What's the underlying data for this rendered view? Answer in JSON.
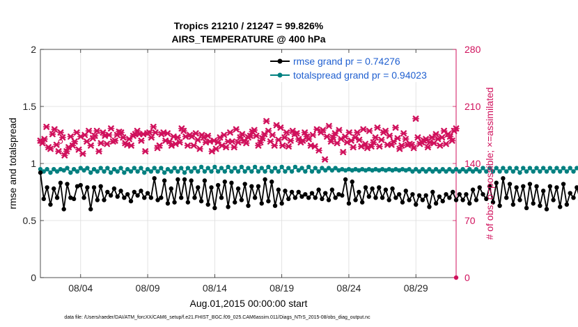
{
  "chart_data": {
    "type": "line",
    "title": "Tropics 21210 / 21247 = 99.826%",
    "subtitle": "AIRS_TEMPERATURE @ 400 hPa",
    "xlabel": "Aug.01,2015 00:00:00 start",
    "ylabel": "rmse and totalspread",
    "y2label": "# of obs: o=possible; ×=assimilated",
    "footnote": "data file: /Users/raeder/DAI/ATM_forcXX/CAM6_setup/f.e21.FHIST_BGC.f09_025.CAM6assim.011/Diags_NTrS_2015-08/obs_diag_output.nc",
    "xlim": [
      1,
      32
    ],
    "ylim": [
      0,
      2
    ],
    "y2lim": [
      0,
      280
    ],
    "x_ticks": [
      {
        "x": 4,
        "label": "08/04"
      },
      {
        "x": 9,
        "label": "08/09"
      },
      {
        "x": 14,
        "label": "08/14"
      },
      {
        "x": 19,
        "label": "08/19"
      },
      {
        "x": 24,
        "label": "08/24"
      },
      {
        "x": 29,
        "label": "08/29"
      }
    ],
    "y_ticks": [
      "0",
      "0.5",
      "1",
      "1.5",
      "2"
    ],
    "y2_ticks": [
      "0",
      "70",
      "140",
      "210",
      "280"
    ],
    "grid": true,
    "legend_position": "top-right",
    "colors": {
      "rmse": "#000000",
      "totalspread": "#008080",
      "obs": "#d0115c"
    },
    "x_start": 1.0,
    "x_step": 0.25,
    "series": [
      {
        "name": "rmse grand pr = 0.74276",
        "axis": "left",
        "values": [
          0.92,
          0.69,
          0.79,
          0.64,
          0.78,
          0.7,
          0.83,
          0.6,
          0.82,
          0.7,
          0.69,
          0.8,
          0.81,
          0.7,
          0.79,
          0.6,
          0.79,
          0.68,
          0.8,
          0.68,
          0.75,
          0.72,
          0.78,
          0.71,
          0.76,
          0.7,
          0.73,
          0.67,
          0.75,
          0.72,
          0.76,
          0.7,
          0.74,
          0.7,
          0.87,
          0.68,
          0.7,
          0.85,
          0.65,
          0.78,
          0.66,
          0.86,
          0.7,
          0.86,
          0.66,
          0.85,
          0.7,
          0.79,
          0.67,
          0.85,
          0.64,
          0.79,
          0.61,
          0.81,
          0.7,
          0.84,
          0.62,
          0.83,
          0.66,
          0.78,
          0.68,
          0.82,
          0.63,
          0.8,
          0.7,
          0.8,
          0.65,
          0.86,
          0.67,
          0.84,
          0.63,
          0.77,
          0.65,
          0.76,
          0.69,
          0.75,
          0.7,
          0.75,
          0.71,
          0.73,
          0.7,
          0.74,
          0.7,
          0.77,
          0.69,
          0.74,
          0.68,
          0.77,
          0.7,
          0.73,
          0.72,
          0.86,
          0.65,
          0.84,
          0.68,
          0.75,
          0.66,
          0.79,
          0.71,
          0.78,
          0.7,
          0.79,
          0.7,
          0.77,
          0.68,
          0.78,
          0.7,
          0.73,
          0.66,
          0.76,
          0.68,
          0.73,
          0.64,
          0.72,
          0.68,
          0.72,
          0.62,
          0.75,
          0.65,
          0.71,
          0.67,
          0.73,
          0.7,
          0.75,
          0.68,
          0.73,
          0.68,
          0.73,
          0.65,
          0.77,
          0.68,
          0.79,
          0.73,
          0.69,
          0.8,
          0.66,
          0.83,
          0.63,
          0.87,
          0.7,
          0.82,
          0.64,
          0.79,
          0.68,
          0.8,
          0.61,
          0.82,
          0.65,
          0.8,
          0.63,
          0.76,
          0.6,
          0.8,
          0.68,
          0.79,
          0.62,
          0.82,
          0.64,
          0.74,
          0.7,
          0.79,
          0.68,
          0.78,
          0.64,
          0.76,
          0.68,
          0.77,
          0.66,
          0.76,
          0.63,
          0.79,
          0.65,
          0.86,
          0.61
        ]
      },
      {
        "name": "totalspread grand pr = 0.94023",
        "axis": "left",
        "values": [
          0.95,
          0.93,
          0.95,
          0.92,
          0.95,
          0.93,
          0.95,
          0.94,
          0.96,
          0.92,
          0.95,
          0.93,
          0.96,
          0.94,
          0.96,
          0.92,
          0.95,
          0.93,
          0.96,
          0.93,
          0.96,
          0.92,
          0.95,
          0.93,
          0.96,
          0.92,
          0.95,
          0.93,
          0.96,
          0.93,
          0.96,
          0.92,
          0.95,
          0.93,
          0.96,
          0.93,
          0.96,
          0.92,
          0.95,
          0.93,
          0.96,
          0.93,
          0.96,
          0.92,
          0.96,
          0.93,
          0.96,
          0.93,
          0.97,
          0.93,
          0.96,
          0.93,
          0.97,
          0.93,
          0.96,
          0.93,
          0.97,
          0.93,
          0.96,
          0.93,
          0.97,
          0.93,
          0.96,
          0.93,
          0.97,
          0.93,
          0.96,
          0.93,
          0.97,
          0.93,
          0.96,
          0.93,
          0.97,
          0.93,
          0.96,
          0.93,
          0.97,
          0.94,
          0.96,
          0.93,
          0.97,
          0.93,
          0.96,
          0.93,
          0.96,
          0.94,
          0.96,
          0.94,
          0.96,
          0.94,
          0.95,
          0.94,
          0.95,
          0.94,
          0.95,
          0.94,
          0.95,
          0.94,
          0.95,
          0.94,
          0.95,
          0.94,
          0.95,
          0.94,
          0.95,
          0.94,
          0.95,
          0.94,
          0.95,
          0.94,
          0.95,
          0.93,
          0.95,
          0.93,
          0.95,
          0.93,
          0.95,
          0.93,
          0.95,
          0.93,
          0.95,
          0.93,
          0.95,
          0.93,
          0.95,
          0.93,
          0.95,
          0.93,
          0.95,
          0.93,
          0.95,
          0.93,
          0.96,
          0.93,
          0.96,
          0.93,
          0.96,
          0.93,
          0.96,
          0.93,
          0.96,
          0.93,
          0.96,
          0.92,
          0.96,
          0.93,
          0.96,
          0.93,
          0.96,
          0.93,
          0.96,
          0.93,
          0.96,
          0.93,
          0.96,
          0.93,
          0.96,
          0.93,
          0.96,
          0.93,
          0.96,
          0.93,
          0.96,
          0.93,
          0.96,
          0.93,
          0.96,
          0.93,
          0.96,
          0.93,
          0.96,
          0.93,
          0.96,
          0.93,
          0.96,
          0.93
        ]
      },
      {
        "name": "obs",
        "axis": "right",
        "marker": "x",
        "values": [
          168,
          165,
          170,
          185,
          160,
          158,
          176,
          182,
          163,
          155,
          178,
          172,
          150,
          155,
          160,
          173,
          162,
          167,
          178,
          157,
          173,
          152,
          175,
          167,
          180,
          162,
          171,
          174,
          180,
          155,
          165,
          178,
          174,
          164,
          175,
          183,
          167,
          168,
          175,
          179,
          178,
          172,
          165,
          163,
          170,
          162,
          174,
          176,
          180,
          176,
          168,
          176,
          155,
          177,
          178,
          172,
          185,
          178,
          159,
          162,
          176,
          178,
          168,
          177,
          167,
          162,
          173,
          164,
          172,
          166,
          183,
          180,
          173,
          162,
          175,
          173,
          162,
          177,
          169,
          158,
          175,
          172,
          166,
          174,
          167,
          155,
          168,
          158,
          166,
          172,
          162,
          175,
          160,
          167,
          178,
          167,
          160,
          182,
          166,
          172,
          176,
          168,
          165,
          172,
          174,
          179,
          181,
          174,
          162,
          166,
          171,
          176,
          192,
          180,
          167,
          175,
          162,
          187,
          169,
          184,
          162,
          172,
          178,
          161,
          168,
          180,
          176,
          177,
          170,
          166,
          168,
          178,
          173,
          170,
          162,
          175,
          161,
          182,
          156,
          178,
          181,
          145,
          173,
          186,
          167,
          172,
          177,
          165,
          181,
          170,
          154,
          173,
          166,
          178,
          168,
          160,
          172,
          178,
          169,
          161,
          182,
          164,
          159,
          180,
          161,
          166,
          172,
          184,
          161,
          169,
          178,
          180,
          163,
          174,
          163,
          167,
          184,
          171,
          158,
          162,
          177,
          170,
          163,
          164,
          163,
          159,
          195,
          172,
          164,
          166,
          168,
          170,
          160,
          166,
          172,
          165,
          176,
          170,
          162,
          172,
          180,
          164,
          176,
          173,
          168,
          180,
          183
        ]
      }
    ],
    "obs_possible_points": [
      {
        "x": 2.5,
        "y": 167
      }
    ]
  }
}
